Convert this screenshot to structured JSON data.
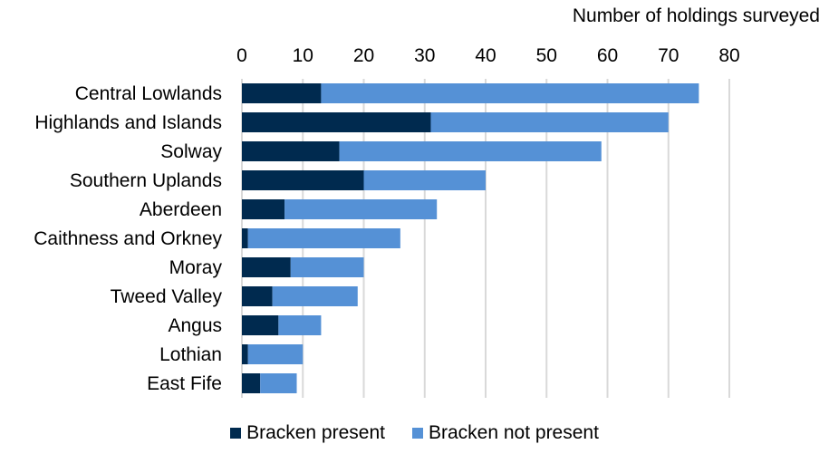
{
  "chart_data": {
    "type": "bar",
    "orientation": "horizontal",
    "stacked": true,
    "xlabel": "Number of holdings surveyed",
    "xlim": [
      0,
      80
    ],
    "xticks": [
      0,
      10,
      20,
      30,
      40,
      50,
      60,
      70,
      80
    ],
    "grid": true,
    "legend_position": "bottom",
    "categories": [
      "Central Lowlands",
      "Highlands and Islands",
      "Solway",
      "Southern Uplands",
      "Aberdeen",
      "Caithness and Orkney",
      "Moray",
      "Tweed Valley",
      "Angus",
      "Lothian",
      "East Fife"
    ],
    "series": [
      {
        "name": "Bracken present",
        "color": "#002a4f",
        "values": [
          13,
          31,
          16,
          20,
          7,
          1,
          8,
          5,
          6,
          1,
          3
        ]
      },
      {
        "name": "Bracken not present",
        "color": "#5591d6",
        "values": [
          62,
          39,
          43,
          20,
          25,
          25,
          12,
          14,
          7,
          9,
          6
        ]
      }
    ]
  }
}
